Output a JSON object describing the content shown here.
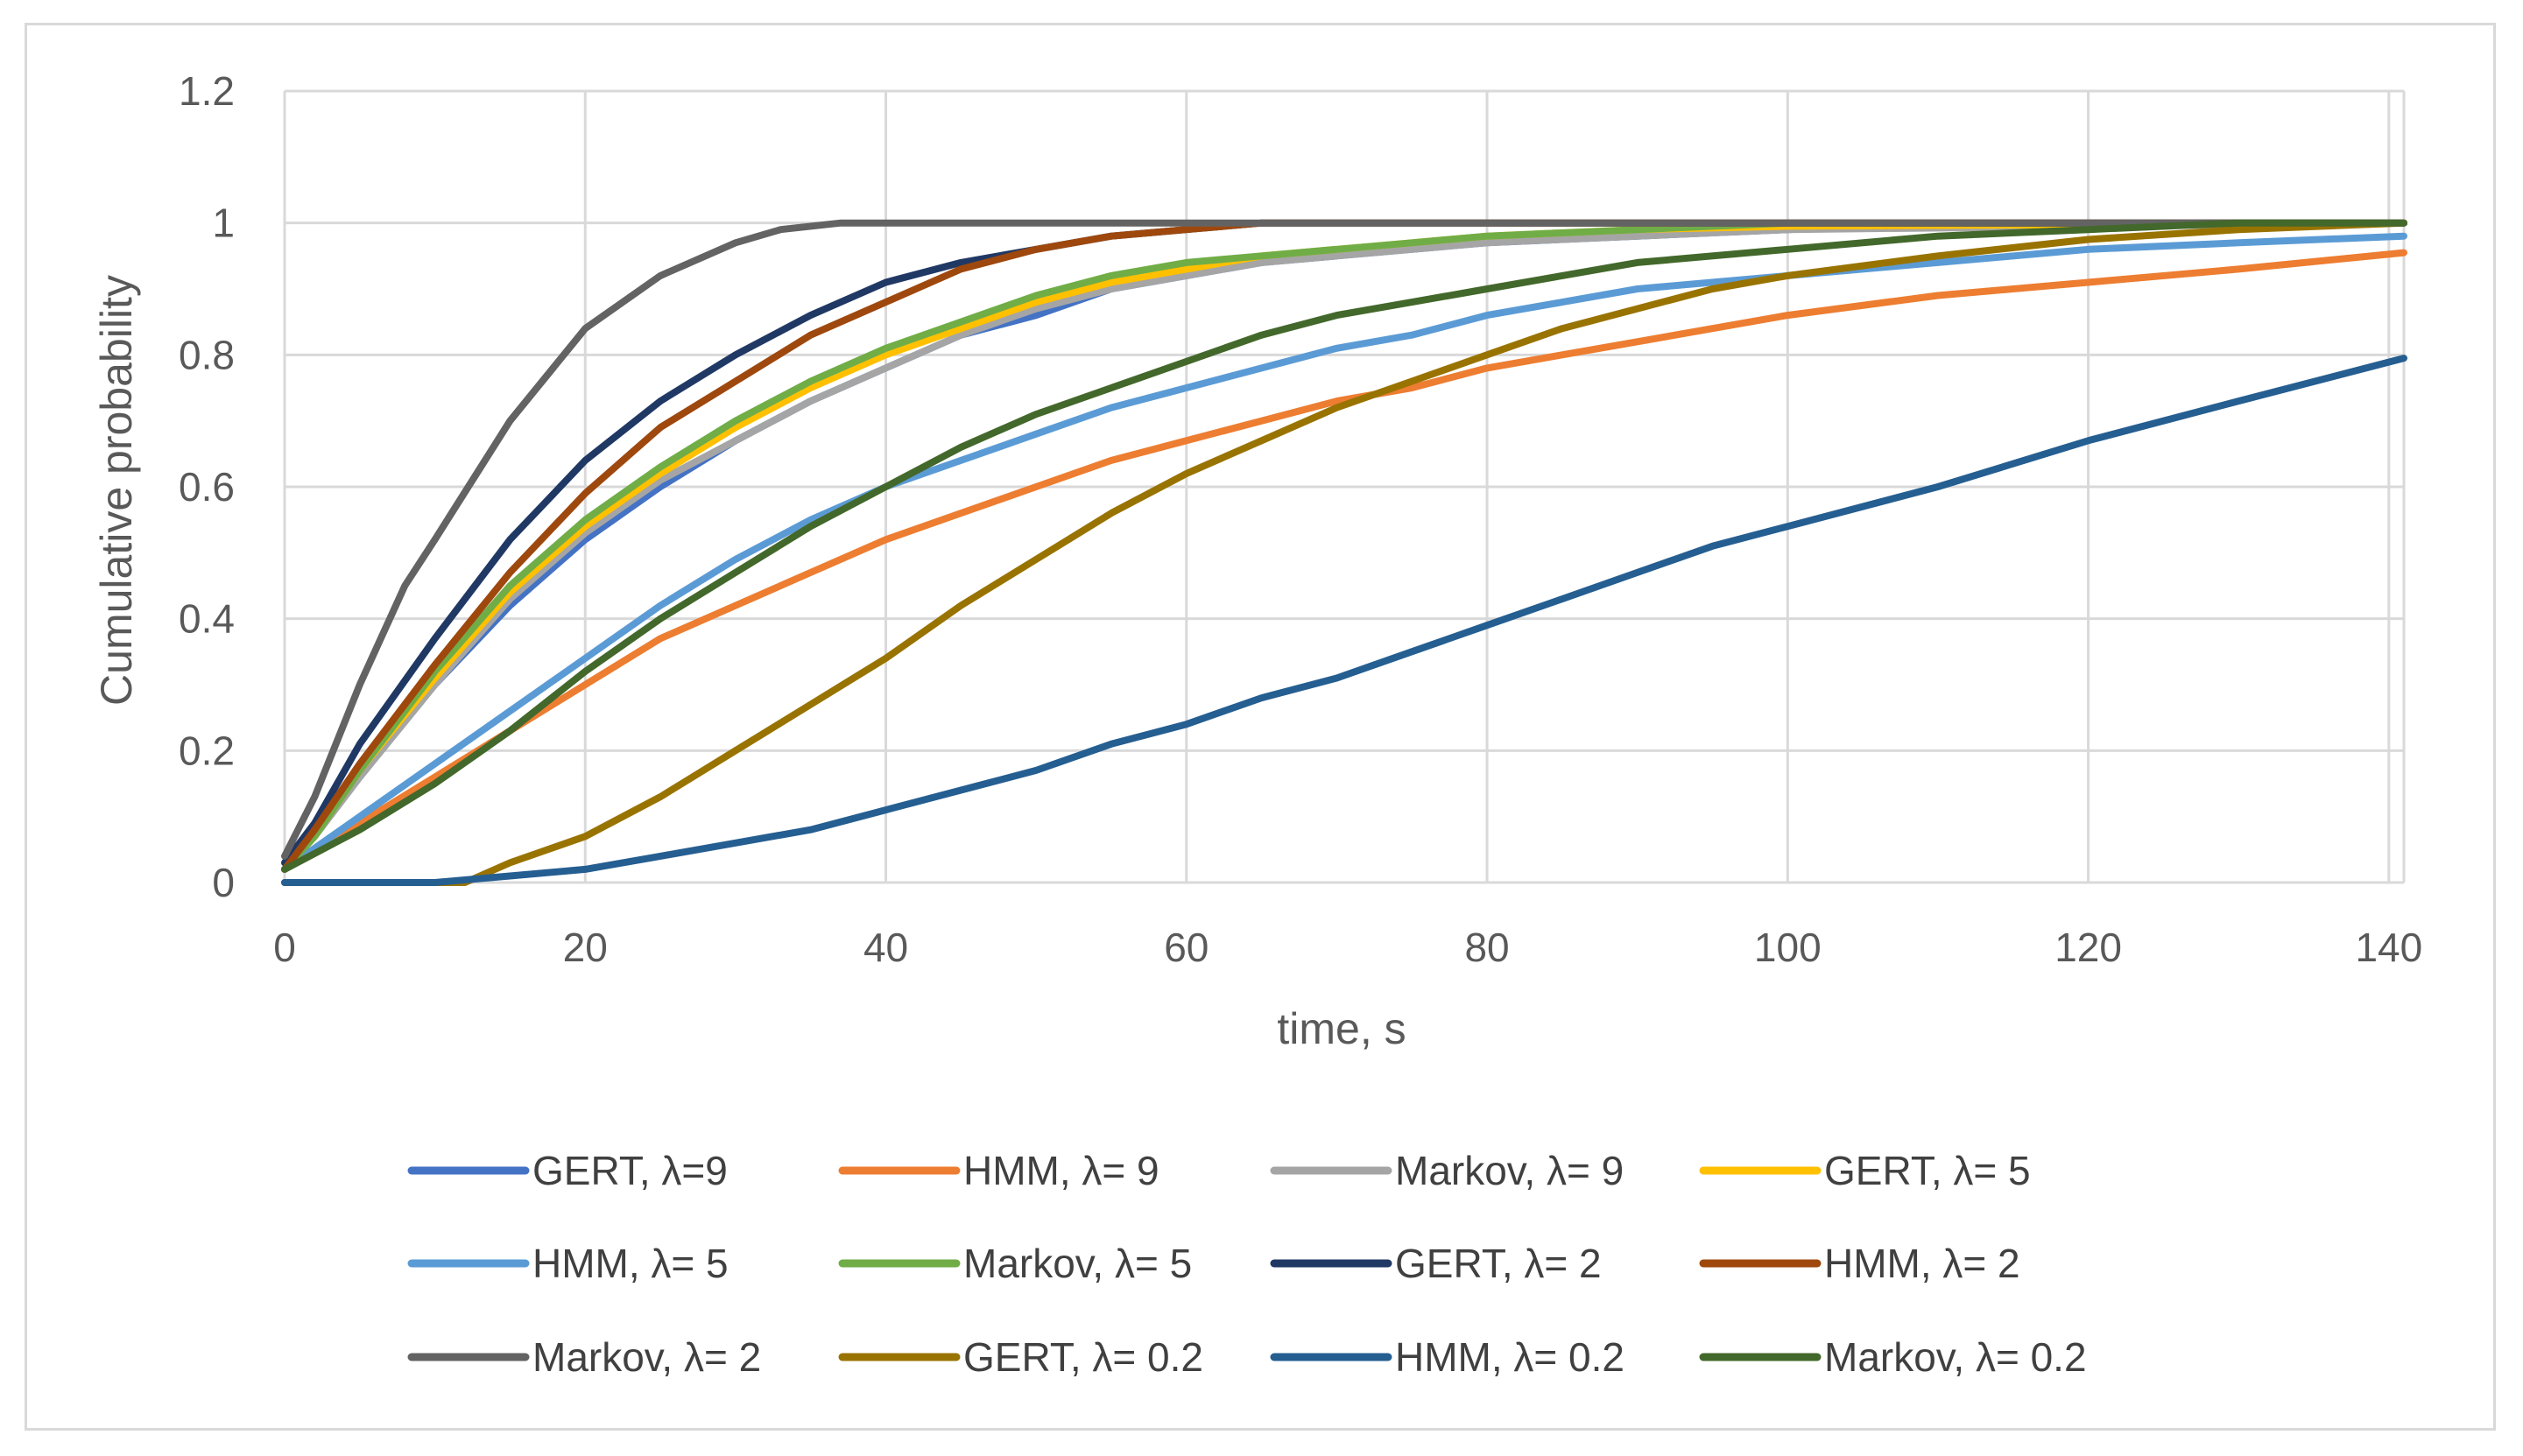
{
  "chart_data": {
    "type": "line",
    "title": "",
    "xlabel": "time, s",
    "ylabel": "Cumulative probability",
    "xlim": [
      0,
      141
    ],
    "ylim": [
      0,
      1.2
    ],
    "x_ticks": [
      0,
      20,
      40,
      60,
      80,
      100,
      120,
      140
    ],
    "y_ticks": [
      0,
      0.2,
      0.4,
      0.6,
      0.8,
      1,
      1.2
    ],
    "x_tick_labels": [
      "0",
      "20",
      "40",
      "60",
      "80",
      "100",
      "120",
      "140"
    ],
    "y_tick_labels": [
      "0",
      "0.2",
      "0.4",
      "0.6",
      "0.8",
      "1",
      "1.2"
    ],
    "grid": true,
    "legend_position": "bottom",
    "series": [
      {
        "name": "GERT, λ=9",
        "color": "#4472C4",
        "x": [
          0,
          2,
          5,
          10,
          15,
          20,
          25,
          30,
          35,
          40,
          45,
          50,
          55,
          60,
          65,
          70,
          75,
          80,
          90,
          100,
          110,
          141
        ],
        "y": [
          0.02,
          0.07,
          0.16,
          0.3,
          0.42,
          0.52,
          0.6,
          0.67,
          0.73,
          0.78,
          0.83,
          0.86,
          0.9,
          0.92,
          0.94,
          0.95,
          0.96,
          0.97,
          0.98,
          0.99,
          1.0,
          1.0
        ]
      },
      {
        "name": "HMM, λ= 9",
        "color": "#ED7D31",
        "x": [
          0,
          5,
          10,
          15,
          20,
          25,
          30,
          35,
          40,
          45,
          50,
          55,
          60,
          65,
          70,
          75,
          80,
          85,
          90,
          95,
          100,
          110,
          120,
          130,
          141
        ],
        "y": [
          0.02,
          0.09,
          0.16,
          0.23,
          0.3,
          0.37,
          0.42,
          0.47,
          0.52,
          0.56,
          0.6,
          0.64,
          0.67,
          0.7,
          0.73,
          0.75,
          0.78,
          0.8,
          0.82,
          0.84,
          0.86,
          0.89,
          0.91,
          0.93,
          0.955
        ]
      },
      {
        "name": "Markov, λ= 9",
        "color": "#A5A5A5",
        "x": [
          0,
          2,
          5,
          10,
          15,
          20,
          25,
          30,
          35,
          40,
          45,
          50,
          55,
          60,
          65,
          70,
          75,
          80,
          90,
          100,
          141
        ],
        "y": [
          0.02,
          0.07,
          0.16,
          0.3,
          0.43,
          0.53,
          0.61,
          0.67,
          0.73,
          0.78,
          0.83,
          0.87,
          0.9,
          0.92,
          0.94,
          0.95,
          0.96,
          0.97,
          0.98,
          0.99,
          1.0
        ]
      },
      {
        "name": "GERT, λ= 5",
        "color": "#FFC000",
        "x": [
          0,
          2,
          5,
          10,
          15,
          20,
          25,
          30,
          35,
          40,
          45,
          50,
          55,
          60,
          65,
          70,
          75,
          80,
          90,
          100,
          141
        ],
        "y": [
          0.02,
          0.07,
          0.17,
          0.31,
          0.44,
          0.54,
          0.62,
          0.69,
          0.75,
          0.8,
          0.84,
          0.88,
          0.91,
          0.93,
          0.95,
          0.96,
          0.97,
          0.98,
          0.99,
          0.995,
          1.0
        ]
      },
      {
        "name": "HMM, λ= 5",
        "color": "#5B9BD5",
        "x": [
          0,
          5,
          10,
          15,
          20,
          25,
          30,
          35,
          40,
          45,
          50,
          55,
          60,
          65,
          70,
          75,
          80,
          85,
          90,
          100,
          110,
          120,
          130,
          141
        ],
        "y": [
          0.02,
          0.1,
          0.18,
          0.26,
          0.34,
          0.42,
          0.49,
          0.55,
          0.6,
          0.64,
          0.68,
          0.72,
          0.75,
          0.78,
          0.81,
          0.83,
          0.86,
          0.88,
          0.9,
          0.92,
          0.94,
          0.96,
          0.97,
          0.98
        ]
      },
      {
        "name": "Markov, λ= 5",
        "color": "#70AD47",
        "x": [
          0,
          2,
          5,
          10,
          15,
          20,
          25,
          30,
          35,
          40,
          45,
          50,
          55,
          60,
          65,
          70,
          75,
          80,
          90,
          100,
          141
        ],
        "y": [
          0.02,
          0.07,
          0.17,
          0.32,
          0.45,
          0.55,
          0.63,
          0.7,
          0.76,
          0.81,
          0.85,
          0.89,
          0.92,
          0.94,
          0.95,
          0.96,
          0.97,
          0.98,
          0.99,
          1.0,
          1.0
        ]
      },
      {
        "name": "GERT, λ= 2",
        "color": "#203864",
        "x": [
          0,
          2,
          5,
          10,
          15,
          20,
          25,
          30,
          35,
          40,
          45,
          50,
          55,
          60,
          65,
          70,
          141
        ],
        "y": [
          0.03,
          0.09,
          0.21,
          0.37,
          0.52,
          0.64,
          0.73,
          0.8,
          0.86,
          0.91,
          0.94,
          0.96,
          0.98,
          0.99,
          1.0,
          1.0,
          1.0
        ]
      },
      {
        "name": "HMM, λ= 2",
        "color": "#9E480E",
        "x": [
          0,
          2,
          5,
          10,
          15,
          20,
          25,
          30,
          35,
          40,
          45,
          50,
          55,
          60,
          65,
          141
        ],
        "y": [
          0.02,
          0.08,
          0.18,
          0.33,
          0.47,
          0.59,
          0.69,
          0.76,
          0.83,
          0.88,
          0.93,
          0.96,
          0.98,
          0.99,
          1.0,
          1.0
        ]
      },
      {
        "name": "Markov, λ= 2",
        "color": "#636363",
        "x": [
          0,
          2,
          5,
          8,
          10,
          15,
          20,
          25,
          30,
          33,
          37,
          40,
          141
        ],
        "y": [
          0.04,
          0.13,
          0.3,
          0.45,
          0.52,
          0.7,
          0.84,
          0.92,
          0.97,
          0.99,
          1.0,
          1.0,
          1.0
        ]
      },
      {
        "name": "GERT, λ= 0.2",
        "color": "#997300",
        "x": [
          0,
          12,
          15,
          20,
          25,
          30,
          35,
          40,
          45,
          50,
          55,
          60,
          65,
          70,
          75,
          80,
          85,
          90,
          95,
          100,
          110,
          120,
          130,
          141
        ],
        "y": [
          0,
          0,
          0.03,
          0.07,
          0.13,
          0.2,
          0.27,
          0.34,
          0.42,
          0.49,
          0.56,
          0.62,
          0.67,
          0.72,
          0.76,
          0.8,
          0.84,
          0.87,
          0.9,
          0.92,
          0.95,
          0.975,
          0.99,
          1.0
        ]
      },
      {
        "name": "HMM, λ= 0.2",
        "color": "#255E91",
        "x": [
          0,
          10,
          15,
          20,
          25,
          30,
          35,
          40,
          45,
          50,
          55,
          60,
          65,
          70,
          75,
          80,
          85,
          90,
          95,
          100,
          110,
          120,
          130,
          141
        ],
        "y": [
          0,
          0,
          0.01,
          0.02,
          0.04,
          0.06,
          0.08,
          0.11,
          0.14,
          0.17,
          0.21,
          0.24,
          0.28,
          0.31,
          0.35,
          0.39,
          0.43,
          0.47,
          0.51,
          0.54,
          0.6,
          0.67,
          0.73,
          0.795
        ]
      },
      {
        "name": "Markov, λ= 0.2",
        "color": "#43682B",
        "x": [
          0,
          5,
          10,
          15,
          20,
          25,
          30,
          35,
          40,
          45,
          50,
          55,
          60,
          65,
          70,
          75,
          80,
          85,
          90,
          100,
          110,
          120,
          130,
          141
        ],
        "y": [
          0.02,
          0.08,
          0.15,
          0.23,
          0.32,
          0.4,
          0.47,
          0.54,
          0.6,
          0.66,
          0.71,
          0.75,
          0.79,
          0.83,
          0.86,
          0.88,
          0.9,
          0.92,
          0.94,
          0.96,
          0.98,
          0.99,
          1.0,
          1.0
        ]
      }
    ]
  }
}
